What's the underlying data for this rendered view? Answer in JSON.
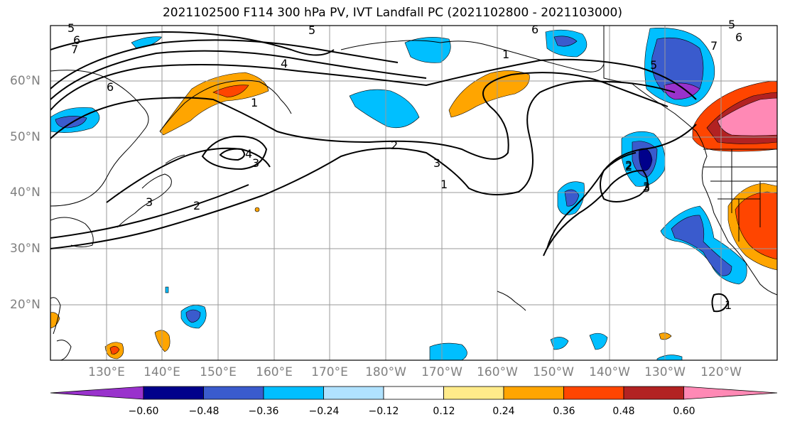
{
  "title": "2021102500 F114 300 hPa PV, IVT Landfall PC (2021102800 - 2021103000)",
  "lat_labels": [
    "60°N",
    "50°N",
    "40°N",
    "30°N",
    "20°N"
  ],
  "lon_labels": [
    "130°E",
    "140°E",
    "150°E",
    "160°E",
    "170°E",
    "180°W",
    "170°W",
    "160°W",
    "150°W",
    "140°W",
    "130°W",
    "120°W"
  ],
  "colorbar": {
    "ticks": [
      "−0.60",
      "−0.48",
      "−0.36",
      "−0.24",
      "−0.12",
      "0.12",
      "0.24",
      "0.36",
      "0.48",
      "0.60"
    ],
    "colors": [
      "#9932CC",
      "#00008B",
      "#3A5BCD",
      "#00BFFF",
      "#B0E2FF",
      "#FFFFFF",
      "#FFEB8A",
      "#FFA500",
      "#FF4500",
      "#B22222",
      "#FF89B5"
    ]
  },
  "contour_labels": [
    "5",
    "6",
    "7",
    "6",
    "5",
    "4",
    "1",
    "2",
    "3",
    "4",
    "3",
    "2",
    "1",
    "2",
    "3",
    "1",
    "6",
    "7",
    "5",
    "3",
    "2",
    "3",
    "1",
    "5",
    "6"
  ]
}
